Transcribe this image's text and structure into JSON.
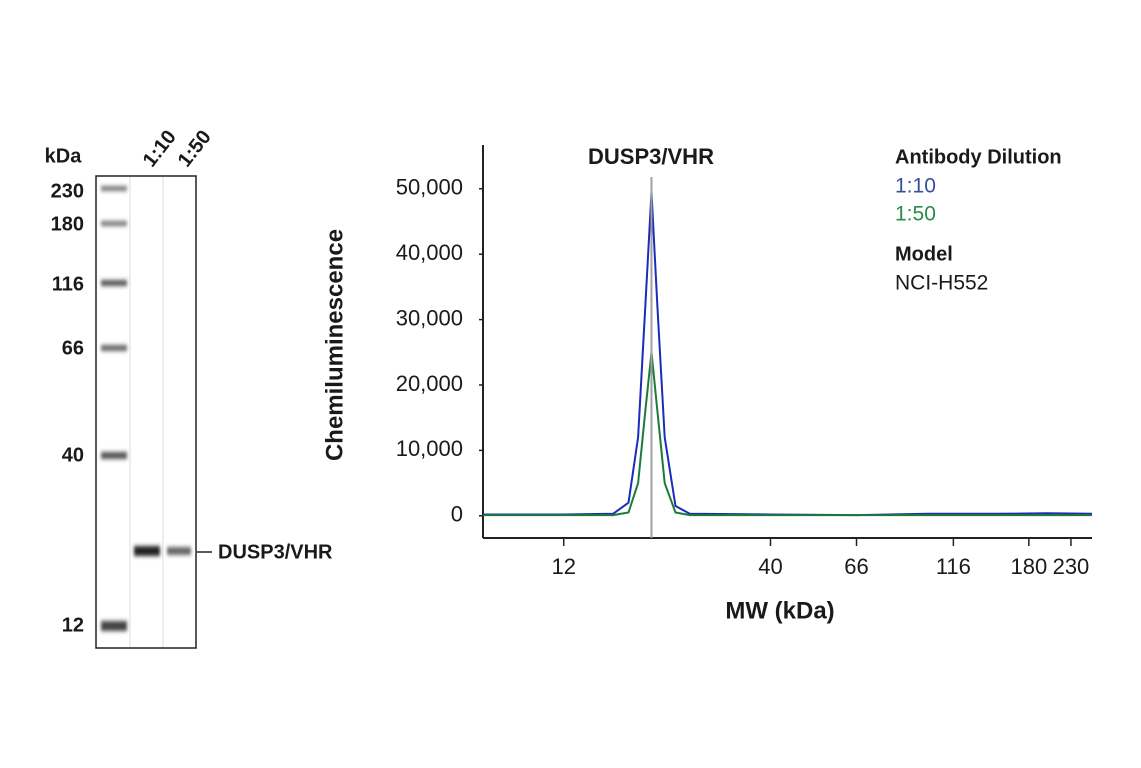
{
  "blot": {
    "unit_label": "kDa",
    "lanes": [
      "1:10",
      "1:50"
    ],
    "ladder": [
      230,
      180,
      116,
      66,
      40,
      12
    ],
    "band_label": "DUSP3/VHR"
  },
  "chart_data": {
    "type": "line",
    "title": "DUSP3/VHR",
    "x_label": "MW (kDa)",
    "y_label": "Chemiluminescence",
    "x": [
      7.5,
      12,
      16,
      17.5,
      18.5,
      19.3,
      20,
      20.7,
      21.6,
      23,
      25,
      40,
      66,
      100,
      150,
      200,
      260
    ],
    "series": [
      {
        "name": "1:10",
        "color": "#1a2cb8",
        "label_color": "#3a4f9a",
        "values": [
          200,
          200,
          300,
          2000,
          12000,
          32000,
          49500,
          32000,
          12000,
          1500,
          300,
          200,
          100,
          300,
          300,
          400,
          300
        ]
      },
      {
        "name": "1:50",
        "color": "#1e7a3a",
        "label_color": "#2e8a4a",
        "values": [
          100,
          100,
          100,
          500,
          5000,
          16000,
          25000,
          16000,
          5000,
          500,
          100,
          100,
          100,
          100,
          100,
          100,
          100
        ]
      }
    ],
    "legend_title": "Antibody Dilution",
    "annotation_title": "Model",
    "annotation_text": "NCI-H552",
    "reference_x": 20,
    "reference_color": "#a0a0a0",
    "x_scale": "log",
    "xlim": [
      7.5,
      260
    ],
    "xticks": [
      12,
      40,
      66,
      116,
      180,
      230
    ],
    "ylim": [
      -3400,
      56700
    ],
    "yticks": [
      0,
      {
        "value": 10000,
        "label": "10,000"
      },
      {
        "value": 20000,
        "label": "20,000"
      },
      {
        "value": 30000,
        "label": "30,000"
      },
      {
        "value": 40000,
        "label": "40,000"
      },
      {
        "value": 50000,
        "label": "50,000"
      }
    ],
    "grid": false
  }
}
